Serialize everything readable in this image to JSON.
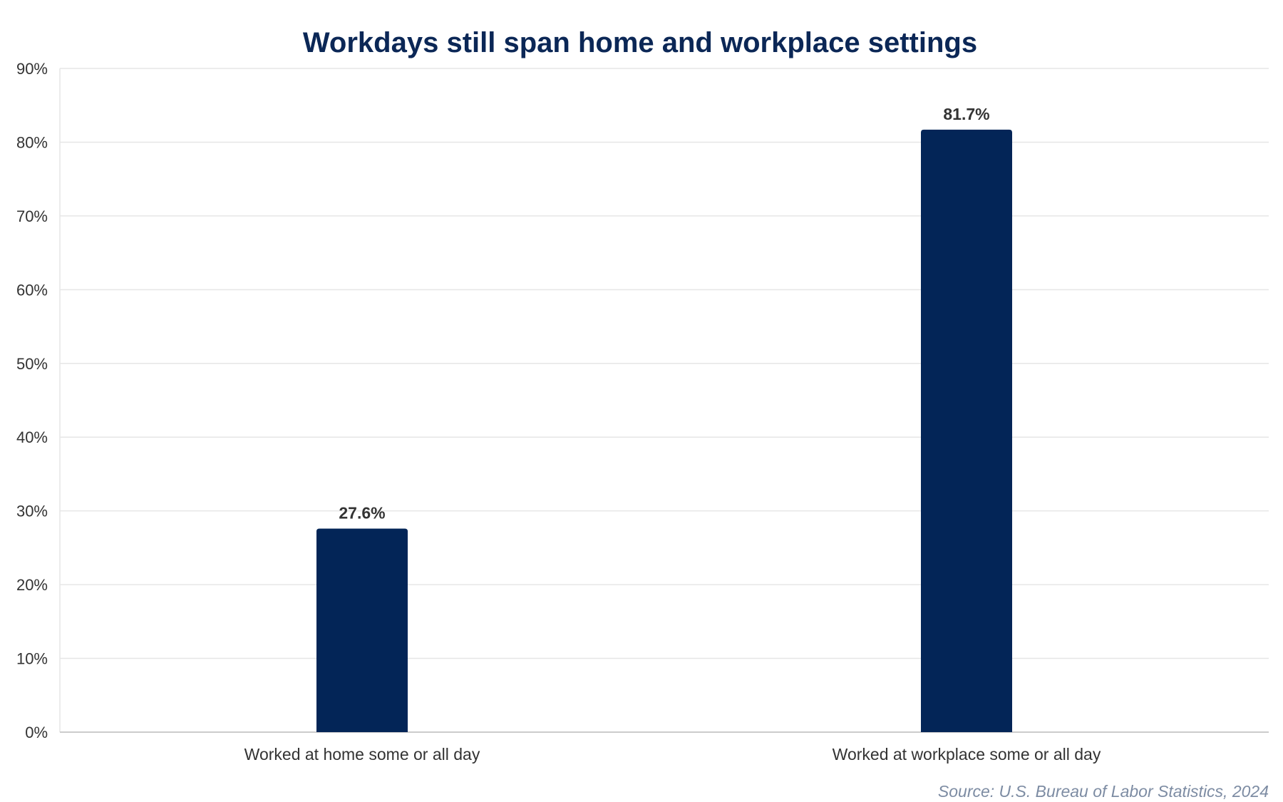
{
  "chart_data": {
    "type": "bar",
    "title": "Workdays still span home and workplace settings",
    "categories": [
      "Worked at home some or all day",
      "Worked at workplace some or all day"
    ],
    "values": [
      27.6,
      81.7
    ],
    "value_labels": [
      "27.6%",
      "81.7%"
    ],
    "ylim": [
      0,
      90
    ],
    "yticks": [
      0,
      10,
      20,
      30,
      40,
      50,
      60,
      70,
      80,
      90
    ],
    "ytick_labels": [
      "0%",
      "10%",
      "20%",
      "30%",
      "40%",
      "50%",
      "60%",
      "70%",
      "80%",
      "90%"
    ],
    "xlabel": "",
    "ylabel": "",
    "grid": true,
    "legend": "none",
    "source": "Source: U.S. Bureau of Labor Statistics, 2024"
  },
  "colors": {
    "bar": "#032557",
    "title": "#0b2756",
    "text": "#333333",
    "grid": "#e6e6e6",
    "axis": "#cccccc",
    "source": "#7d8ca3"
  }
}
